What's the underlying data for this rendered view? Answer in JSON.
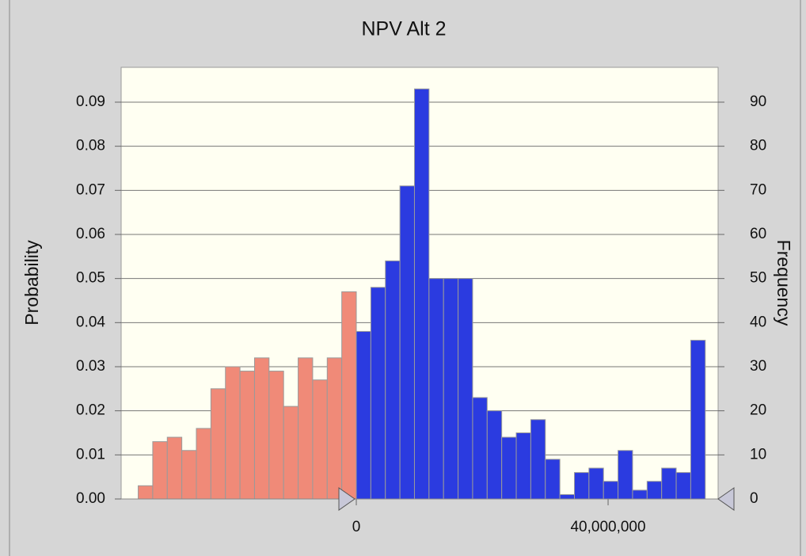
{
  "chart_data": {
    "type": "histogram",
    "title": "NPV Alt 2",
    "y_label": "Probability",
    "y2_label": "Frequency",
    "bins": [
      -34650000,
      -32340000,
      -30030000,
      -27720000,
      -25410000,
      -23100000,
      -20790000,
      -18480000,
      -16170000,
      -13860000,
      -11550000,
      -9240000,
      -6930000,
      -4620000,
      -2310000,
      0,
      2310000,
      4620000,
      6930000,
      9240000,
      11550000,
      13860000,
      16170000,
      18480000,
      20790000,
      23100000,
      25410000,
      27720000,
      30030000,
      32340000,
      34650000,
      36960000,
      39270000,
      41580000,
      43890000,
      46200000,
      48510000,
      50820000,
      53130000,
      55440000
    ],
    "series": [
      {
        "axis": "y2",
        "color": "#2b3be0",
        "color_outside": "#f08a78",
        "values": [
          3,
          13,
          14,
          11,
          16,
          25,
          30,
          29,
          32,
          29,
          21,
          32,
          27,
          32,
          47,
          38,
          48,
          54,
          71,
          93,
          50,
          50,
          50,
          23,
          20,
          14,
          15,
          18,
          9,
          1,
          6,
          7,
          4,
          11,
          2,
          4,
          7,
          6,
          36
        ]
      }
    ],
    "certainty_range": [
      0,
      57480000
    ],
    "xlim": [
      -37360000,
      57480000
    ],
    "xticks": [
      0,
      {
        "value": 40000000,
        "label": "40,000,000"
      }
    ],
    "ylim": [
      0,
      0.0979
    ],
    "yticks": [
      {
        "value": 0,
        "label": "0.00"
      },
      0.01,
      0.02,
      0.03,
      0.04,
      0.05,
      0.06,
      0.07,
      0.08,
      0.09
    ],
    "y2lim": [
      0,
      97.9
    ],
    "y2ticks": [
      0,
      10,
      20,
      30,
      40,
      50,
      60,
      70,
      80,
      90
    ],
    "grid": true
  }
}
